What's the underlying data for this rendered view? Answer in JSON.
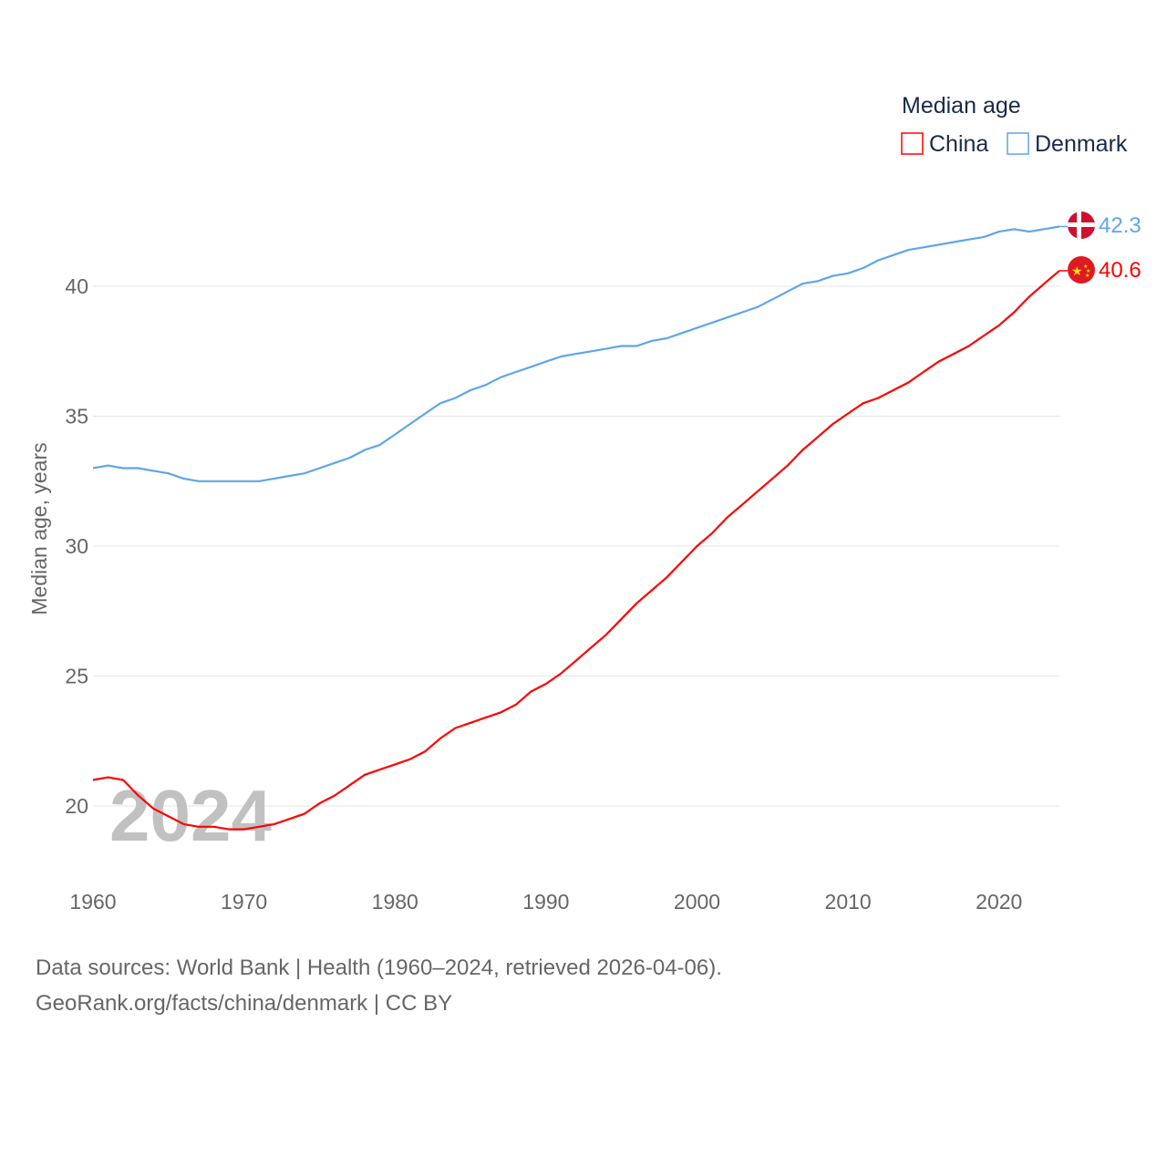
{
  "chart_data": {
    "type": "line",
    "title": "Median age",
    "ylabel": "Median age, years",
    "xlabel": "",
    "xlim": [
      1960,
      2024
    ],
    "ylim": [
      20,
      40
    ],
    "yticks": [
      20,
      25,
      30,
      35,
      40
    ],
    "xticks": [
      1960,
      1970,
      1980,
      1990,
      2000,
      2010,
      2020
    ],
    "grid": true,
    "legend_position": "top-right",
    "watermark_year": "2024",
    "x": [
      1960,
      1961,
      1962,
      1963,
      1964,
      1965,
      1966,
      1967,
      1968,
      1969,
      1970,
      1971,
      1972,
      1973,
      1974,
      1975,
      1976,
      1977,
      1978,
      1979,
      1980,
      1981,
      1982,
      1983,
      1984,
      1985,
      1986,
      1987,
      1988,
      1989,
      1990,
      1991,
      1992,
      1993,
      1994,
      1995,
      1996,
      1997,
      1998,
      1999,
      2000,
      2001,
      2002,
      2003,
      2004,
      2005,
      2006,
      2007,
      2008,
      2009,
      2010,
      2011,
      2012,
      2013,
      2014,
      2015,
      2016,
      2017,
      2018,
      2019,
      2020,
      2021,
      2022,
      2023,
      2024
    ],
    "series": [
      {
        "name": "China",
        "color": "#ff0000",
        "end_label": "40.6",
        "flag": "china-flag",
        "values": [
          21.0,
          21.1,
          21.0,
          20.4,
          19.9,
          19.6,
          19.3,
          19.2,
          19.2,
          19.1,
          19.1,
          19.2,
          19.3,
          19.5,
          19.7,
          20.1,
          20.4,
          20.8,
          21.2,
          21.4,
          21.6,
          21.8,
          22.1,
          22.6,
          23.0,
          23.2,
          23.4,
          23.6,
          23.9,
          24.4,
          24.7,
          25.1,
          25.6,
          26.1,
          26.6,
          27.2,
          27.8,
          28.3,
          28.8,
          29.4,
          30.0,
          30.5,
          31.1,
          31.6,
          32.1,
          32.6,
          33.1,
          33.7,
          34.2,
          34.7,
          35.1,
          35.5,
          35.7,
          36.0,
          36.3,
          36.7,
          37.1,
          37.4,
          37.7,
          38.1,
          38.5,
          39.0,
          39.6,
          40.1,
          40.6
        ]
      },
      {
        "name": "Denmark",
        "color": "#5ea6ea",
        "end_label": "42.3",
        "flag": "denmark-flag",
        "values": [
          33.0,
          33.1,
          33.0,
          33.0,
          32.9,
          32.8,
          32.6,
          32.5,
          32.5,
          32.5,
          32.5,
          32.5,
          32.6,
          32.7,
          32.8,
          33.0,
          33.2,
          33.4,
          33.7,
          33.9,
          34.3,
          34.7,
          35.1,
          35.5,
          35.7,
          36.0,
          36.2,
          36.5,
          36.7,
          36.9,
          37.1,
          37.3,
          37.4,
          37.5,
          37.6,
          37.7,
          37.7,
          37.9,
          38.0,
          38.2,
          38.4,
          38.6,
          38.8,
          39.0,
          39.2,
          39.5,
          39.8,
          40.1,
          40.2,
          40.4,
          40.5,
          40.7,
          41.0,
          41.2,
          41.4,
          41.5,
          41.6,
          41.7,
          41.8,
          41.9,
          42.1,
          42.2,
          42.1,
          42.2,
          42.3
        ]
      }
    ]
  },
  "footer": {
    "line1": "Data sources: World Bank | Health (1960–2024, retrieved 2026-04-06).",
    "line2": "GeoRank.org/facts/china/denmark | CC BY"
  }
}
